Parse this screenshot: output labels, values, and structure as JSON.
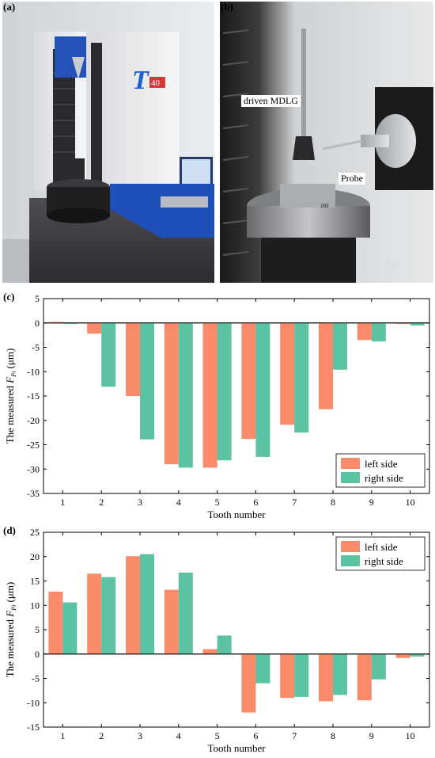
{
  "panels": {
    "a": {
      "label": "(a)",
      "machine_badge": "T",
      "machine_badge_num": "40"
    },
    "b": {
      "label": "(b)",
      "callout_gear": "driven MDLG",
      "callout_probe": "Probe",
      "chuck_number": "103"
    },
    "c": {
      "label": "(c)"
    },
    "d": {
      "label": "(d)"
    }
  },
  "colors": {
    "left": "#F98A6A",
    "right": "#5CC2A4"
  },
  "chart_data": [
    {
      "type": "bar",
      "xlabel": "Tooth number",
      "ylabel": "The measured",
      "ylabel_symbol": "F",
      "ylabel_sub": "Pi",
      "ylabel_unit": " (μm)",
      "categories": [
        "1",
        "2",
        "3",
        "4",
        "5",
        "6",
        "7",
        "8",
        "9",
        "10"
      ],
      "ylim": [
        -35,
        5
      ],
      "yticks": [
        -35,
        -30,
        -25,
        -20,
        -15,
        -10,
        -5,
        0,
        5
      ],
      "legend_position": "bottom-right",
      "series": [
        {
          "name": "left side",
          "values": [
            0.2,
            -2.2,
            -15.0,
            -29.0,
            -29.7,
            -23.8,
            -20.9,
            -17.7,
            -3.5,
            -0.2
          ]
        },
        {
          "name": "right side",
          "values": [
            -0.2,
            -13.1,
            -23.9,
            -29.7,
            -28.2,
            -27.5,
            -22.5,
            -9.6,
            -3.8,
            -0.5
          ]
        }
      ]
    },
    {
      "type": "bar",
      "xlabel": "Tooth number",
      "ylabel": "The measured",
      "ylabel_symbol": "F",
      "ylabel_sub": "Pi",
      "ylabel_unit": " (μm)",
      "categories": [
        "1",
        "2",
        "3",
        "4",
        "5",
        "6",
        "7",
        "8",
        "9",
        "10"
      ],
      "ylim": [
        -15,
        25
      ],
      "yticks": [
        -15,
        -10,
        -5,
        0,
        5,
        10,
        15,
        20,
        25
      ],
      "legend_position": "top-right",
      "series": [
        {
          "name": "left side",
          "values": [
            12.8,
            16.5,
            20.1,
            13.2,
            1.0,
            -12.0,
            -9.0,
            -9.7,
            -9.5,
            -0.8
          ]
        },
        {
          "name": "right side",
          "values": [
            10.6,
            15.8,
            20.5,
            16.7,
            3.8,
            -6.0,
            -8.8,
            -8.4,
            -5.2,
            -0.5
          ]
        }
      ]
    }
  ]
}
